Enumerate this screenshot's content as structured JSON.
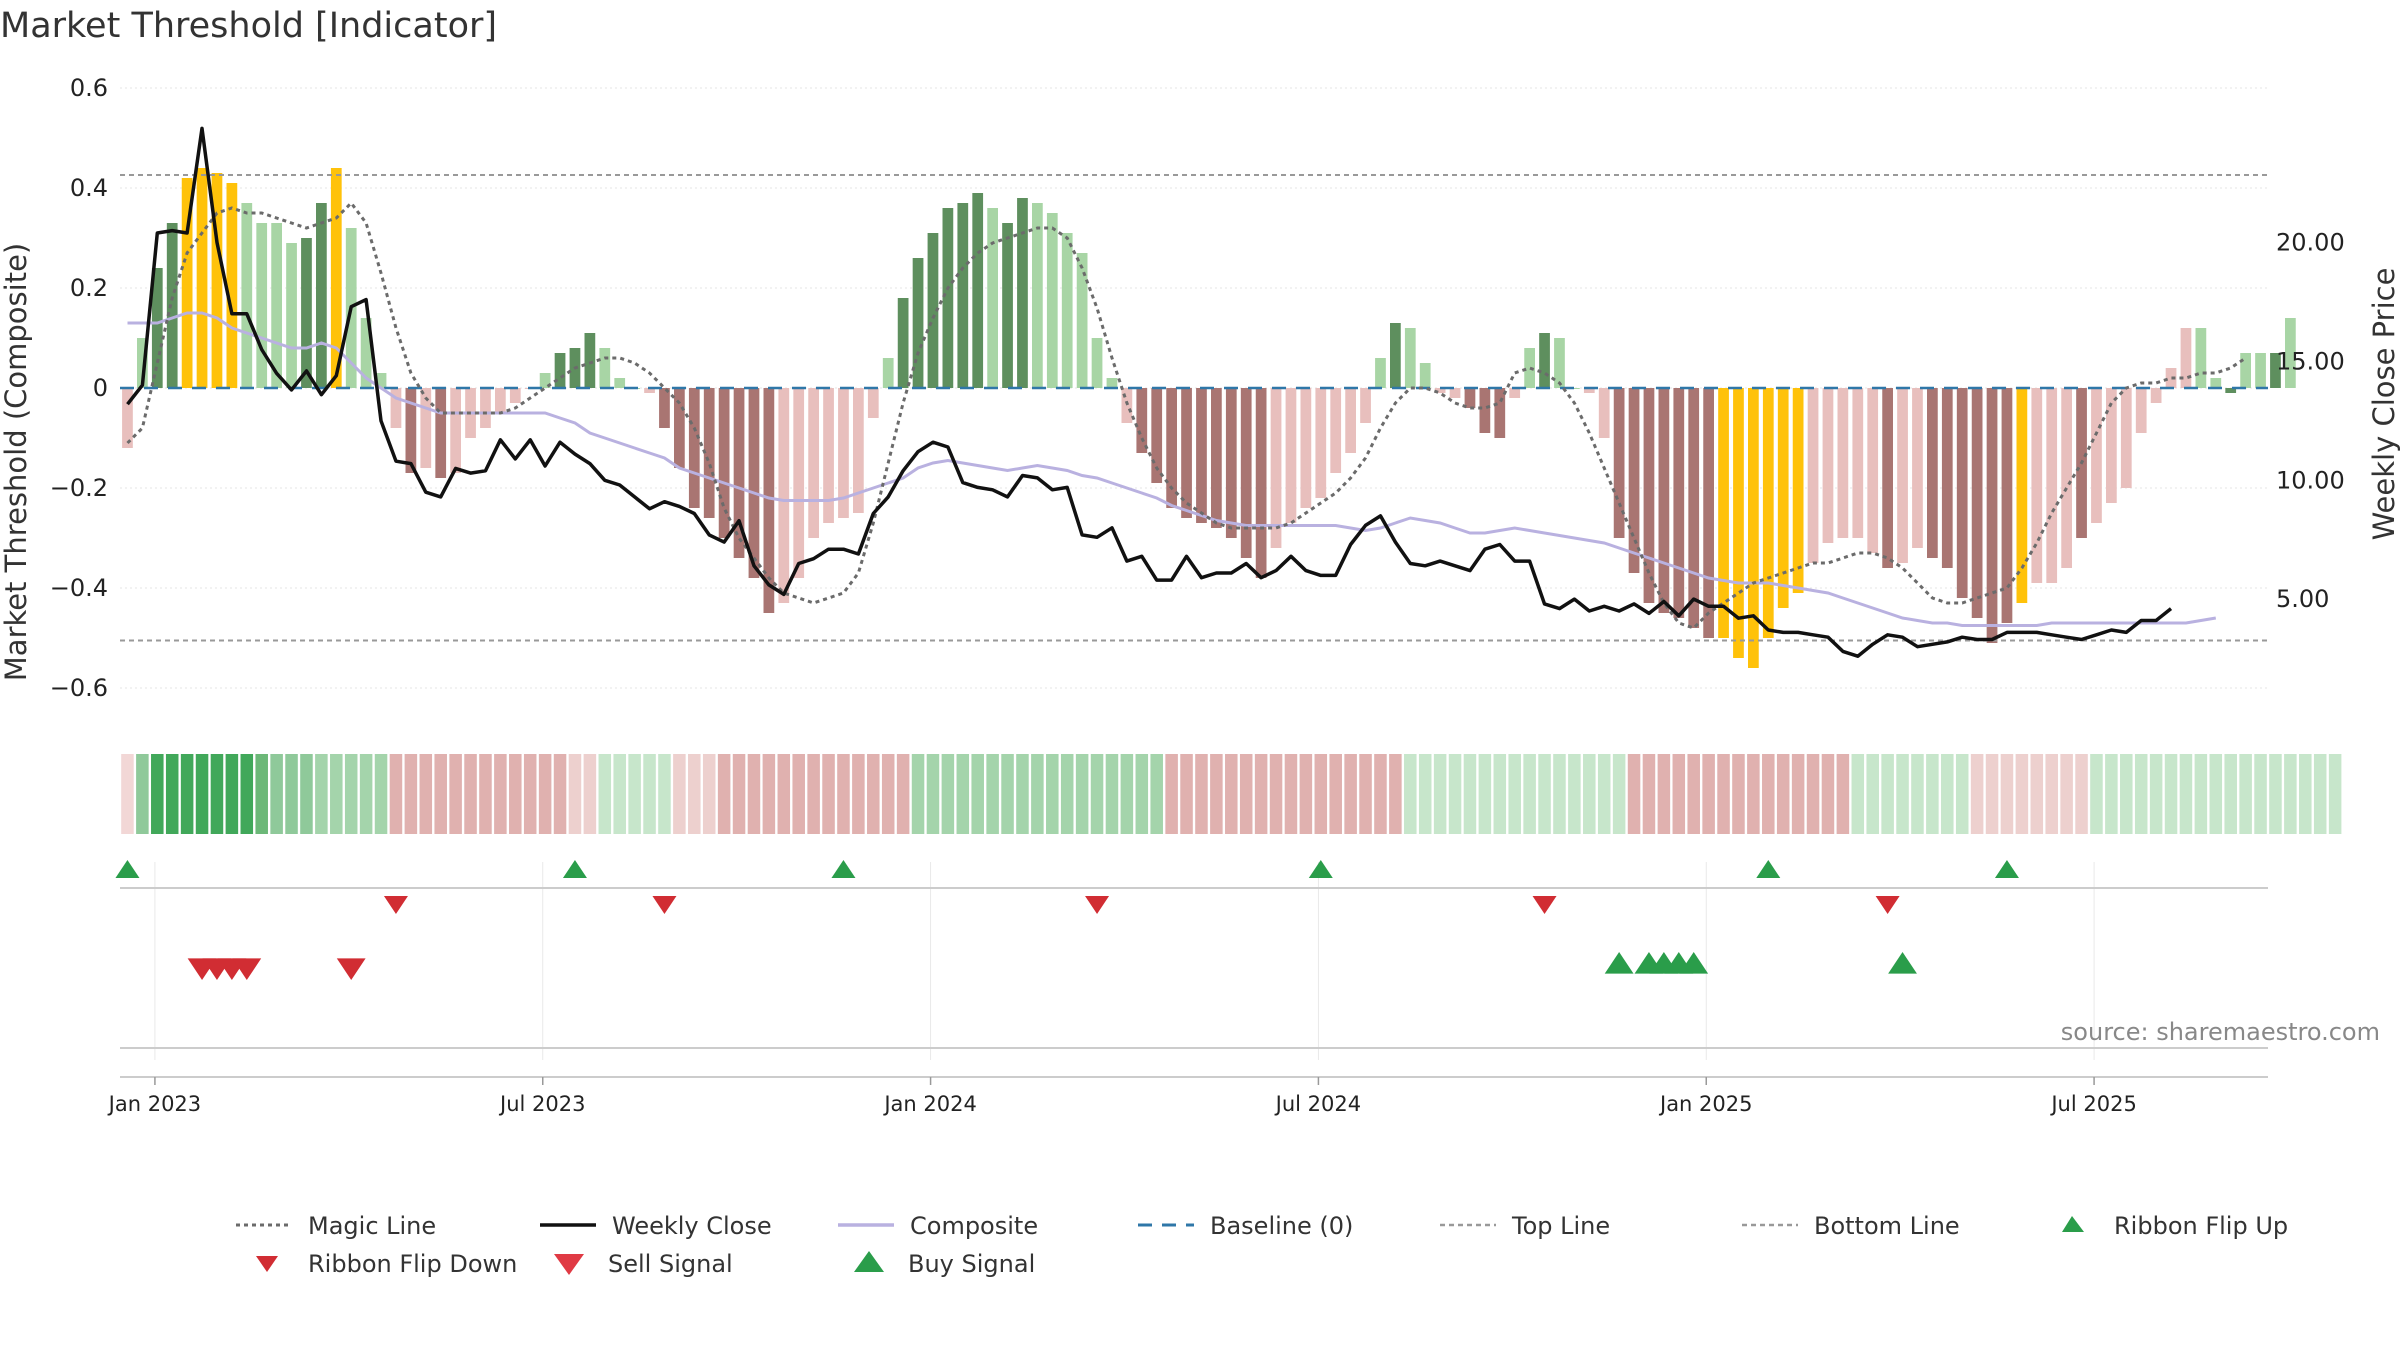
{
  "chart_data": {
    "type": "bar",
    "title": "Market Threshold [Indicator]",
    "ylabel": "Market Threshold (Composite)",
    "y2label": "Weekly Close Price",
    "ylim": [
      -0.66,
      0.6
    ],
    "y2lim": [
      0.0,
      26.5
    ],
    "yticks": [
      "0.6",
      "0.4",
      "0.2",
      "0",
      "−0.2",
      "−0.4",
      "−0.6"
    ],
    "yticks_values": [
      0.6,
      0.4,
      0.2,
      0,
      -0.2,
      -0.4,
      -0.6
    ],
    "y2ticks": [
      "20.00",
      "15.00",
      "10.00",
      "5.00"
    ],
    "y2ticks_values": [
      20,
      15,
      10,
      5
    ],
    "xticks": [
      "Jan 2023",
      "Jul 2023",
      "Jan 2024",
      "Jul 2024",
      "Jan 2025",
      "Jul 2025"
    ],
    "xticks_weeks": [
      1,
      27,
      53,
      79,
      105,
      131
    ],
    "top_line": 0.426,
    "bottom_line": -0.505,
    "baseline": 0,
    "weeks": 144,
    "histogram": [
      -0.12,
      0.1,
      0.24,
      0.33,
      0.42,
      0.44,
      0.43,
      0.41,
      0.37,
      0.33,
      0.33,
      0.29,
      0.3,
      0.37,
      0.44,
      0.32,
      0.14,
      0.03,
      -0.08,
      -0.17,
      -0.16,
      -0.18,
      -0.17,
      -0.1,
      -0.08,
      -0.05,
      -0.03,
      0.0,
      0.03,
      0.07,
      0.08,
      0.11,
      0.08,
      0.02,
      0.0,
      -0.01,
      -0.08,
      -0.16,
      -0.24,
      -0.26,
      -0.3,
      -0.34,
      -0.38,
      -0.45,
      -0.43,
      -0.38,
      -0.3,
      -0.27,
      -0.26,
      -0.25,
      -0.06,
      0.06,
      0.18,
      0.26,
      0.31,
      0.36,
      0.37,
      0.39,
      0.36,
      0.33,
      0.38,
      0.37,
      0.35,
      0.31,
      0.27,
      0.1,
      0.02,
      -0.07,
      -0.13,
      -0.19,
      -0.24,
      -0.26,
      -0.27,
      -0.28,
      -0.3,
      -0.34,
      -0.38,
      -0.32,
      -0.27,
      -0.24,
      -0.22,
      -0.17,
      -0.13,
      -0.07,
      0.06,
      0.13,
      0.12,
      0.05,
      -0.01,
      -0.02,
      -0.04,
      -0.09,
      -0.1,
      -0.02,
      0.08,
      0.11,
      0.1,
      0.0,
      -0.01,
      -0.1,
      -0.3,
      -0.37,
      -0.43,
      -0.45,
      -0.46,
      -0.48,
      -0.5,
      -0.5,
      -0.54,
      -0.56,
      -0.5,
      -0.44,
      -0.41,
      -0.35,
      -0.31,
      -0.3,
      -0.3,
      -0.33,
      -0.36,
      -0.35,
      -0.32,
      -0.34,
      -0.36,
      -0.42,
      -0.46,
      -0.51,
      -0.47,
      -0.43,
      -0.39,
      -0.39,
      -0.36,
      -0.3,
      -0.27,
      -0.23,
      -0.2,
      -0.09,
      -0.03,
      0.04,
      0.12,
      0.12,
      0.02,
      -0.01,
      0.07,
      0.07,
      0.07,
      0.14
    ],
    "bar_style": [
      "lr",
      "lg",
      "dg",
      "dg",
      "y",
      "y",
      "y",
      "y",
      "lg",
      "lg",
      "lg",
      "lg",
      "dg",
      "dg",
      "y",
      "lg",
      "lg",
      "lg",
      "lr",
      "dr",
      "lr",
      "dr",
      "lr",
      "lr",
      "lr",
      "lr",
      "lr",
      "lr",
      "lg",
      "dg",
      "dg",
      "dg",
      "lg",
      "lg",
      "lg",
      "lr",
      "dr",
      "dr",
      "dr",
      "dr",
      "dr",
      "dr",
      "dr",
      "dr",
      "lr",
      "lr",
      "lr",
      "lr",
      "lr",
      "lr",
      "lr",
      "lg",
      "dg",
      "dg",
      "dg",
      "dg",
      "dg",
      "dg",
      "lg",
      "dg",
      "dg",
      "lg",
      "lg",
      "lg",
      "lg",
      "lg",
      "lg",
      "lr",
      "dr",
      "dr",
      "dr",
      "dr",
      "dr",
      "dr",
      "dr",
      "dr",
      "dr",
      "lr",
      "lr",
      "lr",
      "lr",
      "lr",
      "lr",
      "lr",
      "lg",
      "dg",
      "lg",
      "lg",
      "lr",
      "lr",
      "dr",
      "dr",
      "dr",
      "lr",
      "lg",
      "dg",
      "lg",
      "lg",
      "lr",
      "lr",
      "dr",
      "dr",
      "dr",
      "dr",
      "dr",
      "dr",
      "dr",
      "y",
      "y",
      "y",
      "y",
      "y",
      "y",
      "lr",
      "lr",
      "lr",
      "lr",
      "lr",
      "dr",
      "lr",
      "lr",
      "dr",
      "dr",
      "dr",
      "dr",
      "dr",
      "dr",
      "y",
      "lr",
      "lr",
      "lr",
      "dr",
      "lr",
      "lr",
      "lr",
      "lr",
      "lr",
      "lr",
      "lr",
      "lg",
      "lg",
      "dg",
      "lg",
      "lg",
      "dg",
      "lg",
      "dg",
      "dg",
      "dg"
    ],
    "weekly_close": [
      13.2,
      14.0,
      20.4,
      20.5,
      20.4,
      24.8,
      20.0,
      17.0,
      17.0,
      15.5,
      14.5,
      13.8,
      14.6,
      13.6,
      14.4,
      17.3,
      17.6,
      12.5,
      10.8,
      10.7,
      9.5,
      9.3,
      10.5,
      10.3,
      10.4,
      11.7,
      10.9,
      11.7,
      10.6,
      11.6,
      11.1,
      10.7,
      10.0,
      9.8,
      9.3,
      8.8,
      9.1,
      8.9,
      8.6,
      7.7,
      7.4,
      8.3,
      6.4,
      5.6,
      5.2,
      6.5,
      6.7,
      7.1,
      7.1,
      6.9,
      8.6,
      9.3,
      10.4,
      11.2,
      11.6,
      11.4,
      9.9,
      9.7,
      9.6,
      9.3,
      10.2,
      10.1,
      9.6,
      9.7,
      7.7,
      7.6,
      8.0,
      6.6,
      6.8,
      5.8,
      5.8,
      6.8,
      5.9,
      6.1,
      6.1,
      6.5,
      5.9,
      6.2,
      6.8,
      6.2,
      6.0,
      6.0,
      7.3,
      8.1,
      8.5,
      7.4,
      6.5,
      6.4,
      6.6,
      6.4,
      6.2,
      7.1,
      7.3,
      6.6,
      6.6,
      4.8,
      4.6,
      5.0,
      4.5,
      4.7,
      4.5,
      4.8,
      4.4,
      4.9,
      4.3,
      5.0,
      4.7,
      4.7,
      4.2,
      4.3,
      3.7,
      3.6,
      3.6,
      3.5,
      3.4,
      2.8,
      2.6,
      3.1,
      3.5,
      3.4,
      3.0,
      3.1,
      3.2,
      3.4,
      3.3,
      3.3,
      3.6,
      3.6,
      3.6,
      3.5,
      3.4,
      3.3,
      3.5,
      3.7,
      3.6,
      4.1,
      4.1,
      4.6
    ],
    "composite": [
      0.13,
      0.13,
      0.13,
      0.14,
      0.15,
      0.15,
      0.14,
      0.12,
      0.11,
      0.1,
      0.09,
      0.08,
      0.08,
      0.09,
      0.08,
      0.05,
      0.02,
      0.0,
      -0.02,
      -0.03,
      -0.04,
      -0.05,
      -0.05,
      -0.05,
      -0.05,
      -0.05,
      -0.05,
      -0.05,
      -0.05,
      -0.06,
      -0.07,
      -0.09,
      -0.1,
      -0.11,
      -0.12,
      -0.13,
      -0.14,
      -0.16,
      -0.17,
      -0.18,
      -0.19,
      -0.2,
      -0.21,
      -0.22,
      -0.225,
      -0.225,
      -0.225,
      -0.225,
      -0.22,
      -0.21,
      -0.2,
      -0.19,
      -0.18,
      -0.16,
      -0.15,
      -0.145,
      -0.15,
      -0.155,
      -0.16,
      -0.165,
      -0.16,
      -0.155,
      -0.16,
      -0.165,
      -0.175,
      -0.18,
      -0.19,
      -0.2,
      -0.21,
      -0.22,
      -0.235,
      -0.245,
      -0.255,
      -0.265,
      -0.27,
      -0.275,
      -0.275,
      -0.275,
      -0.275,
      -0.275,
      -0.275,
      -0.275,
      -0.28,
      -0.285,
      -0.28,
      -0.27,
      -0.26,
      -0.265,
      -0.27,
      -0.28,
      -0.29,
      -0.29,
      -0.285,
      -0.28,
      -0.285,
      -0.29,
      -0.295,
      -0.3,
      -0.305,
      -0.31,
      -0.32,
      -0.33,
      -0.34,
      -0.35,
      -0.36,
      -0.37,
      -0.38,
      -0.385,
      -0.39,
      -0.39,
      -0.39,
      -0.395,
      -0.4,
      -0.405,
      -0.41,
      -0.42,
      -0.43,
      -0.44,
      -0.45,
      -0.46,
      -0.465,
      -0.47,
      -0.47,
      -0.475,
      -0.475,
      -0.475,
      -0.475,
      -0.475,
      -0.475,
      -0.47,
      -0.47,
      -0.47,
      -0.47,
      -0.47,
      -0.47,
      -0.47,
      -0.47,
      -0.47,
      -0.47,
      -0.465,
      -0.46
    ],
    "magic_line": [
      -0.11,
      -0.08,
      0.05,
      0.18,
      0.27,
      0.31,
      0.35,
      0.36,
      0.35,
      0.35,
      0.34,
      0.33,
      0.32,
      0.33,
      0.34,
      0.37,
      0.33,
      0.23,
      0.12,
      0.03,
      -0.02,
      -0.05,
      -0.05,
      -0.05,
      -0.05,
      -0.05,
      -0.04,
      -0.02,
      0.0,
      0.02,
      0.04,
      0.05,
      0.06,
      0.06,
      0.05,
      0.03,
      0.0,
      -0.03,
      -0.08,
      -0.15,
      -0.24,
      -0.3,
      -0.34,
      -0.38,
      -0.41,
      -0.42,
      -0.43,
      -0.42,
      -0.41,
      -0.37,
      -0.27,
      -0.15,
      -0.03,
      0.07,
      0.14,
      0.2,
      0.24,
      0.27,
      0.29,
      0.3,
      0.31,
      0.32,
      0.32,
      0.3,
      0.24,
      0.16,
      0.06,
      -0.03,
      -0.1,
      -0.16,
      -0.2,
      -0.23,
      -0.25,
      -0.27,
      -0.28,
      -0.28,
      -0.28,
      -0.28,
      -0.27,
      -0.25,
      -0.23,
      -0.21,
      -0.18,
      -0.14,
      -0.08,
      -0.03,
      0.0,
      0.0,
      -0.01,
      -0.03,
      -0.04,
      -0.04,
      -0.03,
      0.03,
      0.04,
      0.03,
      0.01,
      -0.03,
      -0.09,
      -0.16,
      -0.23,
      -0.3,
      -0.37,
      -0.43,
      -0.47,
      -0.48,
      -0.45,
      -0.43,
      -0.41,
      -0.39,
      -0.38,
      -0.37,
      -0.36,
      -0.35,
      -0.35,
      -0.34,
      -0.33,
      -0.33,
      -0.34,
      -0.36,
      -0.39,
      -0.42,
      -0.43,
      -0.43,
      -0.42,
      -0.41,
      -0.4,
      -0.36,
      -0.31,
      -0.25,
      -0.2,
      -0.15,
      -0.09,
      -0.03,
      0.0,
      0.01,
      0.01,
      0.02,
      0.02,
      0.03,
      0.03,
      0.04,
      0.06
    ],
    "ribbon": [
      "lp",
      "g3",
      "g5",
      "g5",
      "g5",
      "g5",
      "g5",
      "g5",
      "g5",
      "g4",
      "g3",
      "g3",
      "g3",
      "g2",
      "g2",
      "g2",
      "g2",
      "g2",
      "r2",
      "r2",
      "r2",
      "r2",
      "r2",
      "r2",
      "r2",
      "r2",
      "r2",
      "r2",
      "r2",
      "r2",
      "r1",
      "r1",
      "g1",
      "g1",
      "g1",
      "g1",
      "g1",
      "r1",
      "r1",
      "r1",
      "r2",
      "r2",
      "r2",
      "r2",
      "r2",
      "r2",
      "r2",
      "r2",
      "r2",
      "r2",
      "r2",
      "r2",
      "r2",
      "g2",
      "g2",
      "g2",
      "g2",
      "g2",
      "g2",
      "g2",
      "g2",
      "g2",
      "g2",
      "g2",
      "g2",
      "g2",
      "g2",
      "g2",
      "g2",
      "g2",
      "r2",
      "r2",
      "r2",
      "r2",
      "r2",
      "r2",
      "r2",
      "r2",
      "r2",
      "r2",
      "r2",
      "r2",
      "r2",
      "r2",
      "r2",
      "r2",
      "g1",
      "g1",
      "g1",
      "g1",
      "g1",
      "g1",
      "g1",
      "g1",
      "g1",
      "g1",
      "g1",
      "g1",
      "g1",
      "g1",
      "g1",
      "r2",
      "r2",
      "r2",
      "r2",
      "r2",
      "r2",
      "r2",
      "r2",
      "r2",
      "r2",
      "r2",
      "r2",
      "r2",
      "r2",
      "r2",
      "g1",
      "g1",
      "g1",
      "g1",
      "g1",
      "g1",
      "g1",
      "g1",
      "r1",
      "r1",
      "r1",
      "r1",
      "r1",
      "r1",
      "r1",
      "r1",
      "g1",
      "g1",
      "g1",
      "g1",
      "g1",
      "g1",
      "g1",
      "g1",
      "g1",
      "g1",
      "g1",
      "g1",
      "g1",
      "g1",
      "g1",
      "g1",
      "g1"
    ],
    "ribbon_flip_up_weeks": [
      0,
      30,
      48,
      80,
      110,
      126
    ],
    "ribbon_flip_down_weeks": [
      18,
      36,
      65,
      95,
      118
    ],
    "sell_signal_weeks": [
      5,
      6,
      7,
      8,
      15
    ],
    "buy_signal_weeks": [
      100,
      102,
      103,
      104,
      105,
      119
    ],
    "legend": [
      {
        "key": "magic",
        "label": "Magic Line"
      },
      {
        "key": "close",
        "label": "Weekly Close"
      },
      {
        "key": "composite",
        "label": "Composite"
      },
      {
        "key": "baseline",
        "label": "Baseline (0)"
      },
      {
        "key": "top",
        "label": "Top Line"
      },
      {
        "key": "bottom",
        "label": "Bottom Line"
      },
      {
        "key": "flipup",
        "label": "Ribbon Flip Up"
      },
      {
        "key": "flipdown",
        "label": "Ribbon Flip Down"
      },
      {
        "key": "sell",
        "label": "Sell Signal"
      },
      {
        "key": "buy",
        "label": "Buy Signal"
      }
    ],
    "source": "source: sharemaestro.com"
  },
  "colors": {
    "dark_green": "#5e8f5e",
    "light_green": "#a8d5a5",
    "dark_red": "#a97572",
    "light_red": "#e8bfbd",
    "yellow": "#ffc20a",
    "close": "#111111",
    "composite": "#b9b1e0",
    "magic": "#6b6b6b",
    "baseline": "#2f77a8",
    "threshold": "#999999",
    "up_arrow": "#2a9d4a",
    "down_arrow": "#d12d33",
    "ribbon_g5": "#41a85a",
    "ribbon_g4": "#6cb878",
    "ribbon_g3": "#8fc99a",
    "ribbon_g2": "#a4d4ab",
    "ribbon_g1": "#c7e6cb",
    "ribbon_r2": "#e0b1af",
    "ribbon_r1": "#edd0ce",
    "ribbon_lp": "#f2d7d6"
  }
}
